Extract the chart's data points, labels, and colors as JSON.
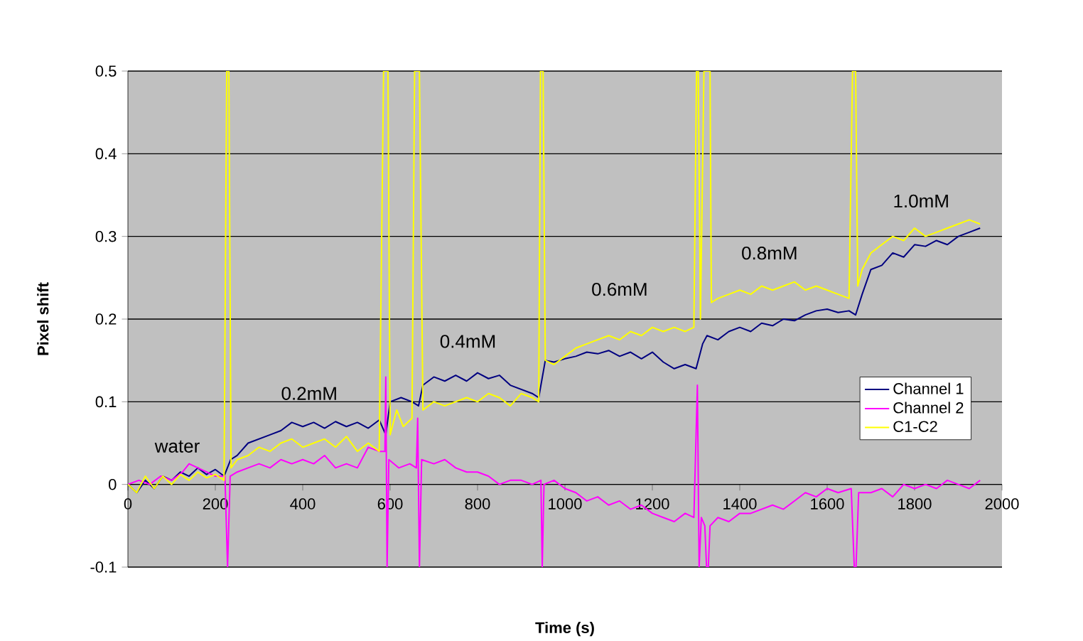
{
  "chart_data": {
    "type": "line",
    "xlabel": "Time (s)",
    "ylabel": "Pixel shift",
    "xlim": [
      0,
      2000
    ],
    "xticks": [
      0,
      200,
      400,
      600,
      800,
      1000,
      1200,
      1400,
      1600,
      1800,
      2000
    ],
    "ylim": [
      -0.1,
      0.5
    ],
    "yticks": [
      -0.1,
      0,
      0.1,
      0.2,
      0.3,
      0.4,
      0.5
    ],
    "grid": "y",
    "legend": "right",
    "marker": "none",
    "line_style": "solid",
    "annotations": [
      "water",
      "0.2mM",
      "0.4mM",
      "0.6mM",
      "0.8mM",
      "1.0mM"
    ],
    "series": [
      {
        "name": "Channel 1",
        "color": "#000080",
        "x": [
          0,
          20,
          40,
          60,
          80,
          100,
          120,
          140,
          160,
          180,
          200,
          220,
          235,
          250,
          275,
          300,
          325,
          350,
          375,
          400,
          425,
          450,
          475,
          500,
          525,
          550,
          575,
          590,
          600,
          625,
          650,
          665,
          675,
          700,
          725,
          750,
          775,
          800,
          825,
          850,
          875,
          900,
          925,
          940,
          955,
          975,
          1000,
          1025,
          1050,
          1075,
          1100,
          1125,
          1150,
          1175,
          1200,
          1225,
          1250,
          1275,
          1300,
          1315,
          1325,
          1350,
          1375,
          1400,
          1425,
          1450,
          1475,
          1500,
          1525,
          1550,
          1575,
          1600,
          1625,
          1650,
          1665,
          1680,
          1700,
          1725,
          1750,
          1775,
          1800,
          1825,
          1850,
          1875,
          1900,
          1925,
          1950
        ],
        "values": [
          0.0,
          -0.01,
          0.005,
          -0.005,
          0.01,
          0.005,
          0.015,
          0.01,
          0.02,
          0.012,
          0.018,
          0.01,
          0.03,
          0.035,
          0.05,
          0.055,
          0.06,
          0.065,
          0.075,
          0.07,
          0.075,
          0.068,
          0.076,
          0.07,
          0.075,
          0.068,
          0.078,
          0.06,
          0.1,
          0.105,
          0.1,
          0.095,
          0.12,
          0.13,
          0.125,
          0.132,
          0.125,
          0.135,
          0.128,
          0.132,
          0.12,
          0.115,
          0.11,
          0.105,
          0.15,
          0.148,
          0.152,
          0.155,
          0.16,
          0.158,
          0.162,
          0.155,
          0.16,
          0.152,
          0.16,
          0.148,
          0.14,
          0.145,
          0.14,
          0.17,
          0.18,
          0.175,
          0.185,
          0.19,
          0.185,
          0.195,
          0.192,
          0.2,
          0.198,
          0.205,
          0.21,
          0.212,
          0.208,
          0.21,
          0.205,
          0.23,
          0.26,
          0.265,
          0.28,
          0.275,
          0.29,
          0.288,
          0.295,
          0.29,
          0.3,
          0.305,
          0.31
        ]
      },
      {
        "name": "Channel 2",
        "color": "#ff00ff",
        "x": [
          0,
          25,
          50,
          75,
          100,
          125,
          140,
          160,
          180,
          200,
          222,
          228,
          234,
          250,
          275,
          300,
          325,
          350,
          375,
          400,
          425,
          450,
          475,
          500,
          525,
          550,
          575,
          588,
          590,
          593,
          597,
          620,
          645,
          660,
          663,
          667,
          672,
          700,
          725,
          750,
          775,
          800,
          825,
          850,
          875,
          900,
          925,
          945,
          948,
          952,
          975,
          1000,
          1025,
          1050,
          1075,
          1100,
          1125,
          1150,
          1175,
          1200,
          1225,
          1250,
          1275,
          1295,
          1303,
          1307,
          1312,
          1320,
          1324,
          1328,
          1332,
          1350,
          1375,
          1400,
          1425,
          1450,
          1475,
          1500,
          1525,
          1550,
          1575,
          1600,
          1625,
          1655,
          1662,
          1666,
          1672,
          1700,
          1725,
          1750,
          1775,
          1800,
          1825,
          1850,
          1875,
          1900,
          1925,
          1950
        ],
        "values": [
          0.0,
          0.005,
          0.0,
          0.01,
          0.005,
          0.015,
          0.025,
          0.02,
          0.015,
          0.01,
          0.01,
          -0.1,
          0.01,
          0.015,
          0.02,
          0.025,
          0.02,
          0.03,
          0.025,
          0.03,
          0.025,
          0.035,
          0.02,
          0.025,
          0.02,
          0.045,
          0.04,
          0.04,
          0.13,
          -0.1,
          0.03,
          0.02,
          0.025,
          0.02,
          0.08,
          -0.1,
          0.03,
          0.025,
          0.03,
          0.02,
          0.015,
          0.015,
          0.01,
          0.0,
          0.005,
          0.005,
          0.0,
          0.005,
          -0.1,
          0.0,
          0.005,
          -0.005,
          -0.01,
          -0.02,
          -0.015,
          -0.025,
          -0.02,
          -0.03,
          -0.025,
          -0.035,
          -0.04,
          -0.045,
          -0.035,
          -0.04,
          0.12,
          -0.1,
          -0.04,
          -0.05,
          -0.1,
          -0.1,
          -0.05,
          -0.04,
          -0.045,
          -0.035,
          -0.035,
          -0.03,
          -0.025,
          -0.03,
          -0.02,
          -0.01,
          -0.015,
          -0.005,
          -0.01,
          -0.005,
          -0.1,
          -0.1,
          -0.01,
          -0.01,
          -0.005,
          -0.015,
          0.0,
          -0.005,
          0.0,
          -0.005,
          0.005,
          0.0,
          -0.005,
          0.005
        ]
      },
      {
        "name": "C1-C2",
        "color": "#ffff00",
        "x": [
          0,
          20,
          40,
          60,
          80,
          100,
          120,
          140,
          160,
          180,
          200,
          220,
          226,
          231,
          236,
          250,
          275,
          300,
          325,
          350,
          375,
          400,
          425,
          450,
          475,
          500,
          525,
          550,
          575,
          585,
          595,
          600,
          615,
          630,
          650,
          656,
          667,
          675,
          700,
          725,
          750,
          775,
          800,
          825,
          850,
          875,
          900,
          925,
          940,
          944,
          950,
          955,
          975,
          1000,
          1025,
          1050,
          1075,
          1100,
          1125,
          1150,
          1175,
          1200,
          1225,
          1250,
          1275,
          1295,
          1301,
          1305,
          1310,
          1318,
          1322,
          1328,
          1332,
          1335,
          1350,
          1375,
          1400,
          1425,
          1450,
          1475,
          1500,
          1525,
          1550,
          1575,
          1600,
          1625,
          1650,
          1658,
          1665,
          1670,
          1680,
          1700,
          1725,
          1750,
          1775,
          1800,
          1825,
          1850,
          1875,
          1900,
          1925,
          1950
        ],
        "values": [
          0.0,
          -0.01,
          0.01,
          -0.005,
          0.01,
          0.0,
          0.012,
          0.005,
          0.015,
          0.008,
          0.012,
          0.005,
          0.5,
          0.5,
          0.02,
          0.03,
          0.035,
          0.045,
          0.04,
          0.05,
          0.055,
          0.045,
          0.05,
          0.055,
          0.045,
          0.058,
          0.04,
          0.05,
          0.04,
          0.5,
          0.5,
          0.06,
          0.09,
          0.07,
          0.08,
          0.5,
          0.5,
          0.09,
          0.1,
          0.095,
          0.1,
          0.105,
          0.1,
          0.11,
          0.105,
          0.095,
          0.11,
          0.105,
          0.1,
          0.5,
          0.5,
          0.15,
          0.145,
          0.155,
          0.165,
          0.17,
          0.175,
          0.18,
          0.175,
          0.185,
          0.18,
          0.19,
          0.185,
          0.19,
          0.185,
          0.19,
          0.5,
          0.5,
          0.2,
          0.5,
          0.5,
          0.5,
          0.5,
          0.22,
          0.225,
          0.23,
          0.235,
          0.23,
          0.24,
          0.235,
          0.24,
          0.245,
          0.235,
          0.24,
          0.235,
          0.23,
          0.225,
          0.5,
          0.5,
          0.24,
          0.26,
          0.28,
          0.29,
          0.3,
          0.295,
          0.31,
          0.3,
          0.305,
          0.31,
          0.315,
          0.32,
          0.315
        ]
      }
    ]
  }
}
